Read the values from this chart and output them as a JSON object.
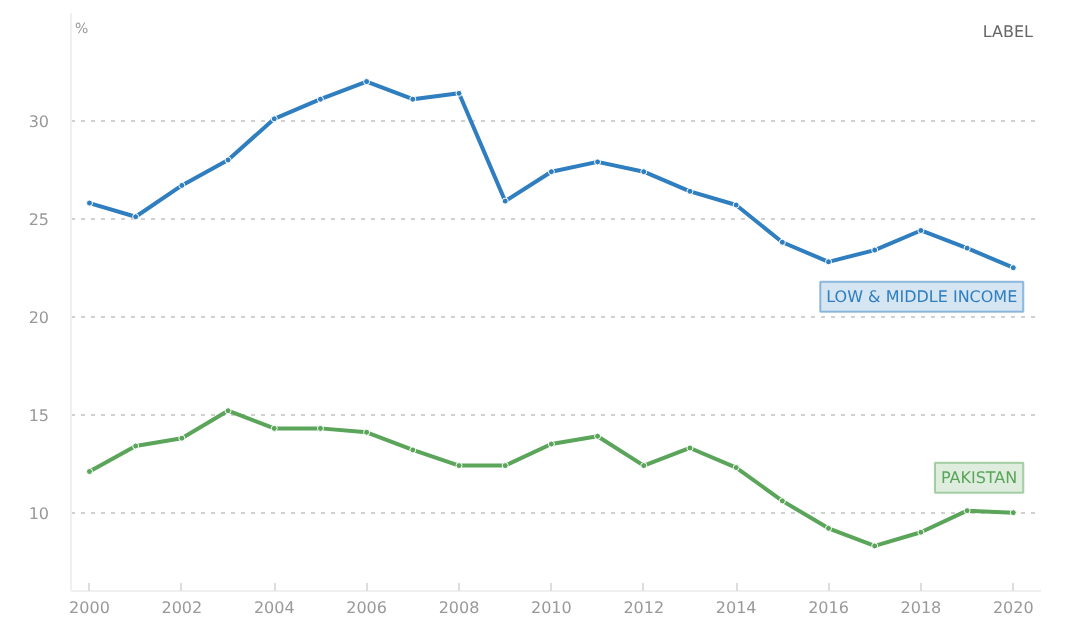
{
  "chart_data": {
    "type": "line",
    "ylabel": "%",
    "x": [
      2000,
      2001,
      2002,
      2003,
      2004,
      2005,
      2006,
      2007,
      2008,
      2009,
      2010,
      2011,
      2012,
      2013,
      2014,
      2015,
      2016,
      2017,
      2018,
      2019,
      2020
    ],
    "series": [
      {
        "name": "LOW & MIDDLE INCOME",
        "color": "#2f7ebf",
        "values": [
          25.8,
          25.1,
          26.7,
          28.0,
          30.1,
          31.1,
          32.0,
          31.1,
          31.4,
          25.9,
          27.4,
          27.9,
          27.4,
          26.4,
          25.7,
          23.8,
          22.8,
          23.4,
          24.4,
          23.5,
          22.5
        ]
      },
      {
        "name": "PAKISTAN",
        "color": "#5aa55a",
        "values": [
          12.1,
          13.4,
          13.8,
          15.2,
          14.3,
          14.3,
          14.1,
          13.2,
          12.4,
          12.4,
          13.5,
          13.9,
          12.4,
          13.3,
          12.3,
          10.6,
          9.2,
          8.3,
          9.0,
          10.1,
          10.0
        ]
      }
    ],
    "annotations": [
      "LABEL"
    ],
    "xlim": [
      1999.6,
      2020.6
    ],
    "xticks": [
      2000,
      2002,
      2004,
      2006,
      2008,
      2010,
      2012,
      2014,
      2016,
      2018,
      2020
    ],
    "ylim": [
      6,
      35.5
    ],
    "yticks": [
      10,
      15,
      20,
      25,
      30
    ],
    "grid": "y",
    "marker": "circle",
    "line_style": "solid"
  }
}
